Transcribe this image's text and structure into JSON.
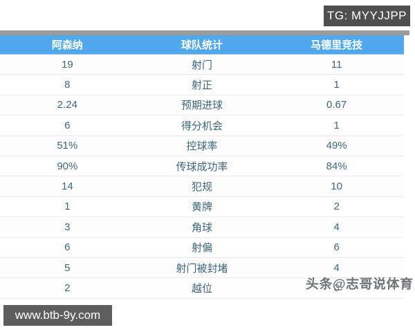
{
  "badge": {
    "label": "TG: MYYJJPP"
  },
  "watermarks": {
    "site": "www.btb-9y.com",
    "author": "头条@志哥说体育"
  },
  "table": {
    "header": {
      "home": "阿森纳",
      "title": "球队统计",
      "away": "马德里竞技"
    },
    "rows": [
      {
        "home": "19",
        "stat": "射门",
        "away": "11"
      },
      {
        "home": "8",
        "stat": "射正",
        "away": "1"
      },
      {
        "home": "2.24",
        "stat": "预期进球",
        "away": "0.67"
      },
      {
        "home": "6",
        "stat": "得分机会",
        "away": "1"
      },
      {
        "home": "51%",
        "stat": "控球率",
        "away": "49%"
      },
      {
        "home": "90%",
        "stat": "传球成功率",
        "away": "84%"
      },
      {
        "home": "14",
        "stat": "犯规",
        "away": "10"
      },
      {
        "home": "1",
        "stat": "黄牌",
        "away": "2"
      },
      {
        "home": "3",
        "stat": "角球",
        "away": "4"
      },
      {
        "home": "6",
        "stat": "射偏",
        "away": "6"
      },
      {
        "home": "5",
        "stat": "射门被封堵",
        "away": "4"
      },
      {
        "home": "2",
        "stat": "越位",
        "away": "0"
      }
    ]
  },
  "chart_data": {
    "type": "table",
    "title": "球队统计",
    "columns": [
      "阿森纳",
      "球队统计",
      "马德里竞技"
    ],
    "categories": [
      "射门",
      "射正",
      "预期进球",
      "得分机会",
      "控球率",
      "传球成功率",
      "犯规",
      "黄牌",
      "角球",
      "射偏",
      "射门被封堵",
      "越位"
    ],
    "series": [
      {
        "name": "阿森纳",
        "values": [
          19,
          8,
          2.24,
          6,
          51,
          90,
          14,
          1,
          3,
          6,
          5,
          2
        ]
      },
      {
        "name": "马德里竞技",
        "values": [
          11,
          1,
          0.67,
          1,
          49,
          84,
          10,
          2,
          4,
          6,
          4,
          0
        ]
      }
    ],
    "percent_rows": [
      "控球率",
      "传球成功率"
    ]
  },
  "colors": {
    "header_bg": "#4fa7ec",
    "top_strip": "#9b9b9b",
    "row_text": "#3c6579",
    "badge_bg": "#4f4f4f",
    "site_box_bg": "#5e5e5e",
    "separator": "#e7eae9"
  }
}
